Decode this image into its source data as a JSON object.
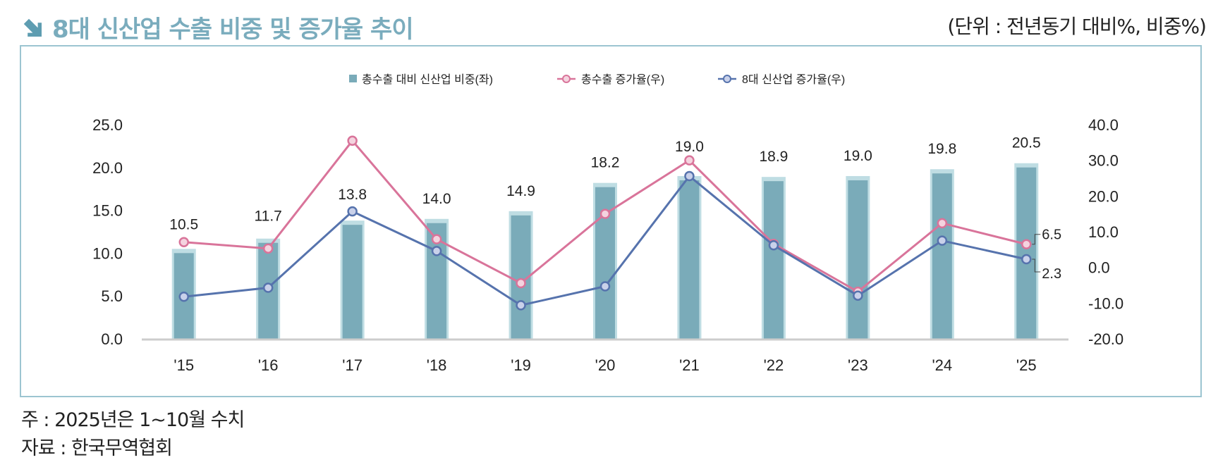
{
  "header": {
    "title": "8대 신산업 수출 비중 및 증가율 추이",
    "unit": "(단위 : 전년동기 대비%, 비중%)",
    "title_icon": "arrow-down-right-icon"
  },
  "notes": [
    "주 : 2025년은 1~10월 수치",
    "자료 : 한국무역협회"
  ],
  "chart_data": {
    "type": "bar+line",
    "categories": [
      "'15",
      "'16",
      "'17",
      "'18",
      "'19",
      "'20",
      "'21",
      "'22",
      "'23",
      "'24",
      "'25"
    ],
    "left_axis": {
      "range": [
        0,
        25
      ],
      "ticks": [
        "0.0",
        "5.0",
        "10.0",
        "15.0",
        "20.0",
        "25.0"
      ]
    },
    "right_axis": {
      "range": [
        -20,
        40
      ],
      "ticks": [
        "-20.0",
        "-10.0",
        "0.0",
        "10.0",
        "20.0",
        "30.0",
        "40.0"
      ]
    },
    "legend_placement": "top-center",
    "series": [
      {
        "name": "총수출 대비 신산업 비중(좌)",
        "kind": "bar",
        "axis": "left",
        "color": "#7aabb9",
        "values": [
          10.5,
          11.7,
          13.8,
          14.0,
          14.9,
          18.2,
          19.0,
          18.9,
          19.0,
          19.8,
          20.5
        ],
        "labels": [
          "10.5",
          "11.7",
          "13.8",
          "14.0",
          "14.9",
          "18.2",
          "19.0",
          "18.9",
          "19.0",
          "19.8",
          "20.5"
        ]
      },
      {
        "name": "총수출 증가율(우)",
        "kind": "line",
        "axis": "right",
        "color": "#d9749a",
        "values": [
          7.1,
          5.3,
          35.5,
          7.9,
          -4.4,
          15.0,
          30.0,
          6.6,
          -6.8,
          12.4,
          6.5
        ],
        "end_label": "6.5"
      },
      {
        "name": "8대 신산업 증가율(우)",
        "kind": "line",
        "axis": "right",
        "color": "#5673ad",
        "values": [
          -8.2,
          -5.7,
          15.7,
          4.6,
          -10.6,
          -5.3,
          25.6,
          6.2,
          -7.9,
          7.5,
          2.3
        ],
        "end_label": "2.3"
      }
    ]
  }
}
